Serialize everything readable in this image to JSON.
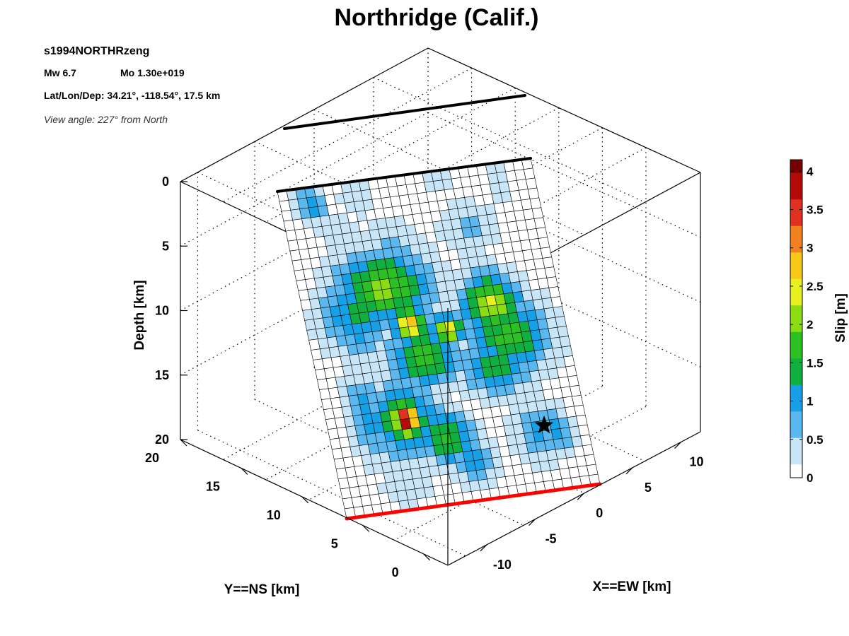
{
  "chart_data": {
    "type": "heatmap",
    "title": "Northridge (Calif.)",
    "info": {
      "event_id": "s1994NORTHRzeng",
      "magnitude": "Mw 6.7",
      "moment": "Mo 1.30e+019",
      "location": "Lat/Lon/Dep: 34.21°, -118.54°, 17.5 km",
      "view_angle": "View angle: 227° from North"
    },
    "axes": {
      "depth": {
        "label": "Depth [km]",
        "ticks": [
          "0",
          "5",
          "10",
          "15",
          "20"
        ],
        "range": [
          0,
          20
        ]
      },
      "y": {
        "label": "Y==NS [km]",
        "ticks": [
          "0",
          "5",
          "10",
          "15",
          "20"
        ],
        "range": [
          -2,
          20
        ]
      },
      "x": {
        "label": "X==EW [km]",
        "ticks": [
          "-10",
          "-5",
          "0",
          "5",
          "10"
        ],
        "range": [
          -14,
          12
        ]
      }
    },
    "colorbar": {
      "label": "Slip [m]",
      "ticks": [
        "0",
        "0.5",
        "1",
        "1.5",
        "2",
        "2.5",
        "3",
        "3.5",
        "4"
      ],
      "range": [
        0,
        4.15
      ],
      "colormap": "jet-white",
      "colors": [
        "#ffffff",
        "#c8e6f8",
        "#5ab8ee",
        "#16a0e6",
        "#10b040",
        "#2cc024",
        "#8cdc14",
        "#e8f020",
        "#f8c818",
        "#f08020",
        "#e03020",
        "#b40a0a",
        "#780000"
      ]
    },
    "fault": {
      "grid_columns": 28,
      "grid_rows": 33,
      "top_trace_color": "#000000",
      "bottom_trace_color": "#ff0000",
      "hypocenter_marker": "star",
      "slip_patches": [
        {
          "u": 0.12,
          "v": 0.05,
          "slip": 1.1,
          "ru": 0.05,
          "rv": 0.05
        },
        {
          "u": 0.3,
          "v": 0.05,
          "slip": 0.5,
          "ru": 0.06,
          "rv": 0.05
        },
        {
          "u": 0.62,
          "v": 0.03,
          "slip": 0.4,
          "ru": 0.05,
          "rv": 0.04
        },
        {
          "u": 0.85,
          "v": 0.06,
          "slip": 0.5,
          "ru": 0.04,
          "rv": 0.05
        },
        {
          "u": 0.2,
          "v": 0.14,
          "slip": 0.5,
          "ru": 0.07,
          "rv": 0.05
        },
        {
          "u": 0.4,
          "v": 0.2,
          "slip": 0.6,
          "ru": 0.1,
          "rv": 0.06
        },
        {
          "u": 0.7,
          "v": 0.18,
          "slip": 0.6,
          "ru": 0.1,
          "rv": 0.07
        },
        {
          "u": 0.33,
          "v": 0.33,
          "slip": 2.0,
          "ru": 0.16,
          "rv": 0.1
        },
        {
          "u": 0.2,
          "v": 0.4,
          "slip": 1.3,
          "ru": 0.12,
          "rv": 0.1
        },
        {
          "u": 0.4,
          "v": 0.45,
          "slip": 2.8,
          "ru": 0.06,
          "rv": 0.05
        },
        {
          "u": 0.54,
          "v": 0.48,
          "slip": 2.5,
          "ru": 0.06,
          "rv": 0.04
        },
        {
          "u": 0.43,
          "v": 0.55,
          "slip": 1.8,
          "ru": 0.12,
          "rv": 0.08
        },
        {
          "u": 0.73,
          "v": 0.42,
          "slip": 2.3,
          "ru": 0.1,
          "rv": 0.08
        },
        {
          "u": 0.77,
          "v": 0.52,
          "slip": 1.7,
          "ru": 0.14,
          "rv": 0.1
        },
        {
          "u": 0.7,
          "v": 0.6,
          "slip": 1.4,
          "ru": 0.12,
          "rv": 0.08
        },
        {
          "u": 0.31,
          "v": 0.73,
          "slip": 4.1,
          "ru": 0.05,
          "rv": 0.045
        },
        {
          "u": 0.3,
          "v": 0.73,
          "slip": 1.6,
          "ru": 0.13,
          "rv": 0.1
        },
        {
          "u": 0.16,
          "v": 0.7,
          "slip": 1.0,
          "ru": 0.07,
          "rv": 0.12
        },
        {
          "u": 0.45,
          "v": 0.8,
          "slip": 1.7,
          "ru": 0.09,
          "rv": 0.07
        },
        {
          "u": 0.53,
          "v": 0.88,
          "slip": 1.0,
          "ru": 0.08,
          "rv": 0.06
        },
        {
          "u": 0.81,
          "v": 0.82,
          "slip": 0.9,
          "ru": 0.09,
          "rv": 0.08
        },
        {
          "u": 0.88,
          "v": 0.82,
          "slip": 1.1,
          "ru": 0.05,
          "rv": 0.06
        },
        {
          "u": 0.26,
          "v": 0.93,
          "slip": 0.5,
          "ru": 0.09,
          "rv": 0.05
        },
        {
          "u": 0.6,
          "v": 0.65,
          "slip": 0.6,
          "ru": 0.06,
          "rv": 0.05
        }
      ]
    }
  }
}
